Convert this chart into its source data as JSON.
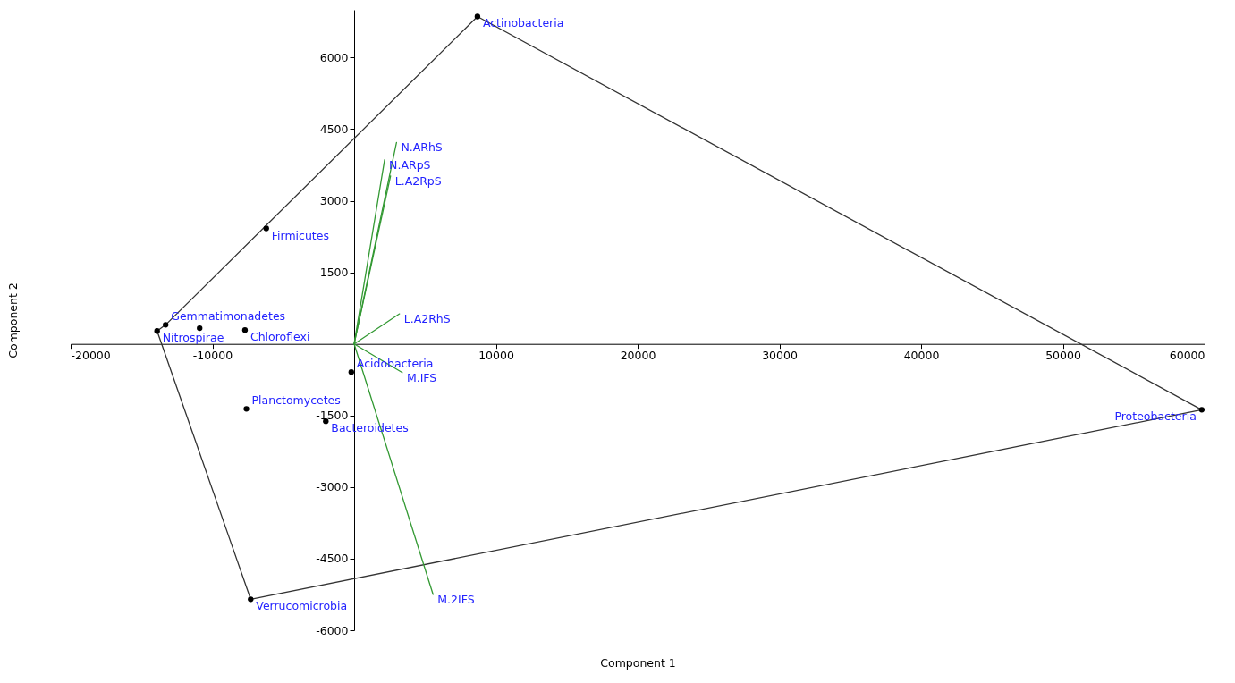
{
  "chart_data": {
    "type": "scatter",
    "xlabel": "Component 1",
    "ylabel": "Component 2",
    "xlim": [
      -20000,
      60000
    ],
    "ylim": [
      -6000,
      7000
    ],
    "xticks": [
      -20000,
      -10000,
      10000,
      20000,
      30000,
      40000,
      50000,
      60000
    ],
    "yticks": [
      -6000,
      -4500,
      -3000,
      -1500,
      1500,
      3000,
      4500,
      6000
    ],
    "grid": false,
    "series": [
      {
        "type": "line",
        "color": "#333333",
        "x": [
          -13900,
          -13300,
          8700,
          59800
        ],
        "values": [
          270,
          400,
          6860,
          -1380
        ]
      },
      {
        "type": "line",
        "color": "#333333",
        "x": [
          -13900,
          -7300,
          59800
        ],
        "values": [
          270,
          -5350,
          -1380
        ]
      },
      {
        "type": "line",
        "name": "N.ARhS",
        "color": "#339933",
        "x": [
          0,
          2990
        ],
        "values": [
          0,
          4220
        ]
      },
      {
        "type": "line",
        "name": "N.ARpS",
        "color": "#339933",
        "x": [
          0,
          2150
        ],
        "values": [
          0,
          3860
        ]
      },
      {
        "type": "line",
        "name": "L.A2RpS",
        "color": "#339933",
        "x": [
          0,
          2570
        ],
        "values": [
          0,
          3520
        ]
      },
      {
        "type": "line",
        "name": "L.A2RhS",
        "color": "#339933",
        "x": [
          0,
          3200
        ],
        "values": [
          0,
          630
        ]
      },
      {
        "type": "line",
        "name": "M.IFS",
        "color": "#339933",
        "x": [
          0,
          3400
        ],
        "values": [
          0,
          -600
        ]
      },
      {
        "type": "line",
        "name": "M.2IFS",
        "color": "#339933",
        "x": [
          0,
          5570
        ],
        "values": [
          0,
          -5250
        ]
      },
      {
        "marker": "circle",
        "color": "#000000",
        "x": [
          8700,
          59800,
          -7300,
          -13300,
          -13900,
          -10900,
          -7700,
          -6200,
          -200,
          -7600,
          -2000
        ],
        "values": [
          6860,
          -1380,
          -5350,
          400,
          270,
          330,
          290,
          2420,
          -590,
          -1360,
          -1620
        ]
      }
    ],
    "annotations": [
      {
        "text": "Actinobacteria",
        "x": 8700,
        "y": 6860
      },
      {
        "text": "Proteobacteria",
        "x": 59800,
        "y": -1380
      },
      {
        "text": "Verrucomicrobia",
        "x": -7300,
        "y": -5350
      },
      {
        "text": "Chloroflexi",
        "x": -7700,
        "y": 290
      },
      {
        "text": "Nitrospirae",
        "x": -13900,
        "y": 270
      },
      {
        "text": "Gemmatimonadetes",
        "x": -13300,
        "y": 400
      },
      {
        "text": "Firmicutes",
        "x": -6200,
        "y": 2420
      },
      {
        "text": "Acidobacteria",
        "x": -200,
        "y": -590
      },
      {
        "text": "Planctomycetes",
        "x": -7600,
        "y": -1360
      },
      {
        "text": "Bacteroidetes",
        "x": -2000,
        "y": -1620
      }
    ]
  }
}
